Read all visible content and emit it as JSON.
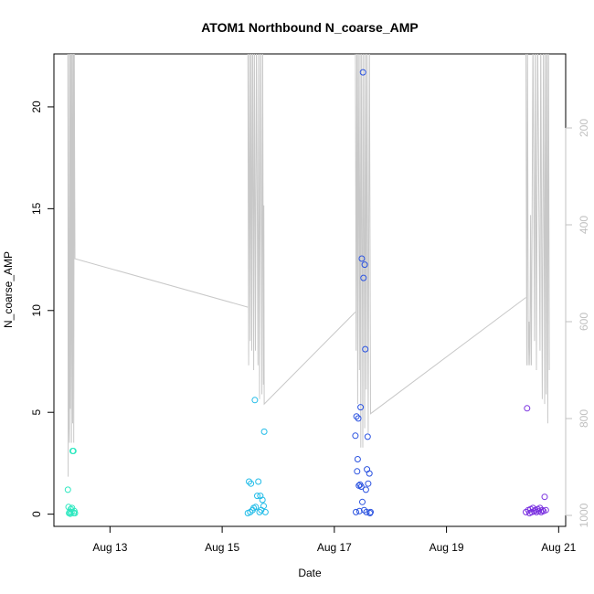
{
  "chart_data": {
    "type": "scatter",
    "title": "ATOM1 Northbound N_coarse_AMP",
    "xlabel": "Date",
    "ylabel": "N_coarse_AMP",
    "x_unit": "days",
    "xlim": [
      "Aug 12 00:00",
      "Aug 21 03:00"
    ],
    "ylim": [
      -0.6,
      22.6
    ],
    "x_ticks": [
      {
        "value": "Aug 13",
        "label": "Aug 13"
      },
      {
        "value": "Aug 15",
        "label": "Aug 15"
      },
      {
        "value": "Aug 17",
        "label": "Aug 17"
      },
      {
        "value": "Aug 19",
        "label": "Aug 19"
      },
      {
        "value": "Aug 21",
        "label": "Aug 21"
      }
    ],
    "y_ticks": [
      0,
      5,
      10,
      15,
      20
    ],
    "y_tick_labels": [
      "0",
      "5",
      "10",
      "15",
      "20"
    ],
    "secondary_axis": {
      "color": "#c0c0c0",
      "reversed": true,
      "ticks": [
        200,
        400,
        600,
        800,
        1000
      ],
      "tick_labels": [
        "200",
        "400",
        "600",
        "800",
        "1000"
      ],
      "range": [
        1000,
        0
      ]
    },
    "grid": false,
    "series": [
      {
        "color": "#2ee8c0",
        "points": [
          [
            "Aug 12 06:00",
            1.2
          ],
          [
            "Aug 12 06:15",
            0.35
          ],
          [
            "Aug 12 06:30",
            0.05
          ],
          [
            "Aug 12 06:45",
            0.1
          ],
          [
            "Aug 12 07:00",
            0.02
          ],
          [
            "Aug 12 07:15",
            0.25
          ],
          [
            "Aug 12 07:30",
            0.1
          ],
          [
            "Aug 12 07:45",
            0.3
          ],
          [
            "Aug 12 08:00",
            3.1
          ],
          [
            "Aug 12 08:20",
            3.1
          ],
          [
            "Aug 12 08:30",
            0.05
          ],
          [
            "Aug 12 08:45",
            0.15
          ],
          [
            "Aug 12 09:00",
            0.05
          ]
        ]
      },
      {
        "color": "#22bce8",
        "points": [
          [
            "Aug 15 11:00",
            0.05
          ],
          [
            "Aug 15 11:30",
            1.6
          ],
          [
            "Aug 15 12:00",
            0.1
          ],
          [
            "Aug 15 12:20",
            1.5
          ],
          [
            "Aug 15 13:00",
            0.2
          ],
          [
            "Aug 15 13:30",
            0.3
          ],
          [
            "Aug 15 14:00",
            5.6
          ],
          [
            "Aug 15 14:20",
            0.35
          ],
          [
            "Aug 15 15:00",
            0.9
          ],
          [
            "Aug 15 15:30",
            1.6
          ],
          [
            "Aug 15 16:00",
            0.1
          ],
          [
            "Aug 15 16:20",
            0.9
          ],
          [
            "Aug 15 16:45",
            0.2
          ],
          [
            "Aug 15 17:15",
            0.7
          ],
          [
            "Aug 15 17:45",
            0.4
          ],
          [
            "Aug 15 18:00",
            4.05
          ],
          [
            "Aug 15 18:30",
            0.1
          ]
        ]
      },
      {
        "color": "#2a52e0",
        "points": [
          [
            "Aug 17 09:00",
            3.85
          ],
          [
            "Aug 17 09:15",
            0.1
          ],
          [
            "Aug 17 09:30",
            4.8
          ],
          [
            "Aug 17 09:45",
            2.1
          ],
          [
            "Aug 17 10:00",
            2.7
          ],
          [
            "Aug 17 10:15",
            4.7
          ],
          [
            "Aug 17 10:30",
            1.4
          ],
          [
            "Aug 17 10:45",
            0.15
          ],
          [
            "Aug 17 11:00",
            1.45
          ],
          [
            "Aug 17 11:15",
            5.25
          ],
          [
            "Aug 17 11:30",
            1.35
          ],
          [
            "Aug 17 11:45",
            12.55
          ],
          [
            "Aug 17 12:00",
            0.6
          ],
          [
            "Aug 17 12:15",
            21.7
          ],
          [
            "Aug 17 12:30",
            11.6
          ],
          [
            "Aug 17 12:45",
            0.2
          ],
          [
            "Aug 17 13:00",
            12.25
          ],
          [
            "Aug 17 13:15",
            8.1
          ],
          [
            "Aug 17 13:30",
            1.2
          ],
          [
            "Aug 17 13:45",
            0.1
          ],
          [
            "Aug 17 14:00",
            2.2
          ],
          [
            "Aug 17 14:15",
            3.8
          ],
          [
            "Aug 17 14:30",
            1.5
          ],
          [
            "Aug 17 15:00",
            2.0
          ],
          [
            "Aug 17 15:15",
            0.05
          ],
          [
            "Aug 17 15:30",
            0.1
          ]
        ]
      },
      {
        "color": "#7b32e0",
        "points": [
          [
            "Aug 20 10:00",
            0.1
          ],
          [
            "Aug 20 10:30",
            5.2
          ],
          [
            "Aug 20 11:00",
            0.2
          ],
          [
            "Aug 20 11:30",
            0.05
          ],
          [
            "Aug 20 12:00",
            0.25
          ],
          [
            "Aug 20 12:30",
            0.1
          ],
          [
            "Aug 20 13:00",
            0.3
          ],
          [
            "Aug 20 13:30",
            0.15
          ],
          [
            "Aug 20 14:00",
            0.2
          ],
          [
            "Aug 20 14:30",
            0.1
          ],
          [
            "Aug 20 15:00",
            0.25
          ],
          [
            "Aug 20 15:30",
            0.15
          ],
          [
            "Aug 20 16:00",
            0.3
          ],
          [
            "Aug 20 16:30",
            0.1
          ],
          [
            "Aug 20 17:00",
            0.2
          ],
          [
            "Aug 20 17:30",
            0.15
          ],
          [
            "Aug 20 18:00",
            0.85
          ],
          [
            "Aug 20 18:30",
            0.2
          ]
        ]
      }
    ],
    "secondary_line": {
      "color": "#c8c8c8",
      "segments": [
        [
          [
            "Aug 12 06:00",
            0
          ],
          [
            "Aug 12 06:05",
            920
          ],
          [
            "Aug 12 06:10",
            0
          ],
          [
            "Aug 12 06:30",
            820
          ],
          [
            "Aug 12 06:40",
            850
          ],
          [
            "Aug 12 06:50",
            0
          ],
          [
            "Aug 12 07:00",
            780
          ],
          [
            "Aug 12 07:10",
            0
          ],
          [
            "Aug 12 07:30",
            850
          ],
          [
            "Aug 12 07:40",
            0
          ],
          [
            "Aug 12 08:00",
            810
          ],
          [
            "Aug 12 08:10",
            0
          ],
          [
            "Aug 12 08:20",
            0
          ],
          [
            "Aug 12 08:30",
            850
          ],
          [
            "Aug 12 08:40",
            0
          ],
          [
            "Aug 12 09:00",
            470
          ],
          [
            "Aug 15 11:00",
            570
          ]
        ],
        [
          [
            "Aug 15 11:00",
            0
          ],
          [
            "Aug 15 11:20",
            690
          ],
          [
            "Aug 15 11:40",
            0
          ],
          [
            "Aug 15 12:00",
            640
          ],
          [
            "Aug 15 12:20",
            0
          ],
          [
            "Aug 15 12:40",
            660
          ],
          [
            "Aug 15 13:00",
            0
          ],
          [
            "Aug 15 13:30",
            700
          ],
          [
            "Aug 15 13:45",
            0
          ],
          [
            "Aug 15 14:15",
            660
          ],
          [
            "Aug 15 14:40",
            0
          ],
          [
            "Aug 15 15:20",
            690
          ],
          [
            "Aug 15 15:40",
            0
          ],
          [
            "Aug 15 16:00",
            760
          ],
          [
            "Aug 15 16:30",
            0
          ],
          [
            "Aug 15 17:00",
            750
          ],
          [
            "Aug 15 17:20",
            0
          ],
          [
            "Aug 15 17:40",
            730
          ],
          [
            "Aug 15 17:50",
            360
          ],
          [
            "Aug 15 18:00",
            770
          ],
          [
            "Aug 17 09:00",
            580
          ]
        ],
        [
          [
            "Aug 17 09:00",
            0
          ],
          [
            "Aug 17 09:20",
            660
          ],
          [
            "Aug 17 09:40",
            0
          ],
          [
            "Aug 17 10:00",
            770
          ],
          [
            "Aug 17 10:15",
            0
          ],
          [
            "Aug 17 10:45",
            700
          ],
          [
            "Aug 17 11:00",
            0
          ],
          [
            "Aug 17 11:20",
            860
          ],
          [
            "Aug 17 11:40",
            0
          ],
          [
            "Aug 17 12:10",
            860
          ],
          [
            "Aug 17 12:30",
            0
          ],
          [
            "Aug 17 13:00",
            820
          ],
          [
            "Aug 17 13:20",
            0
          ],
          [
            "Aug 17 13:40",
            740
          ],
          [
            "Aug 17 14:00",
            0
          ],
          [
            "Aug 17 14:30",
            830
          ],
          [
            "Aug 17 15:00",
            0
          ],
          [
            "Aug 17 15:30",
            790
          ],
          [
            "Aug 20 10:00",
            550
          ]
        ],
        [
          [
            "Aug 20 10:00",
            0
          ],
          [
            "Aug 20 10:20",
            690
          ],
          [
            "Aug 20 10:40",
            0
          ],
          [
            "Aug 20 11:00",
            690
          ],
          [
            "Aug 20 11:20",
            600
          ],
          [
            "Aug 20 11:40",
            690
          ],
          [
            "Aug 20 12:00",
            380
          ],
          [
            "Aug 20 12:20",
            690
          ],
          [
            "Aug 20 13:00",
            0
          ],
          [
            "Aug 20 13:40",
            640
          ],
          [
            "Aug 20 14:00",
            0
          ],
          [
            "Aug 20 14:30",
            700
          ],
          [
            "Aug 20 15:00",
            0
          ],
          [
            "Aug 20 16:00",
            660
          ],
          [
            "Aug 20 16:20",
            0
          ],
          [
            "Aug 20 17:00",
            760
          ],
          [
            "Aug 20 17:30",
            0
          ],
          [
            "Aug 20 18:00",
            770
          ],
          [
            "Aug 20 18:20",
            0
          ],
          [
            "Aug 20 18:40",
            750
          ],
          [
            "Aug 20 19:00",
            0
          ],
          [
            "Aug 20 19:20",
            810
          ],
          [
            "Aug 20 19:40",
            0
          ],
          [
            "Aug 20 20:00",
            700
          ]
        ]
      ]
    }
  }
}
